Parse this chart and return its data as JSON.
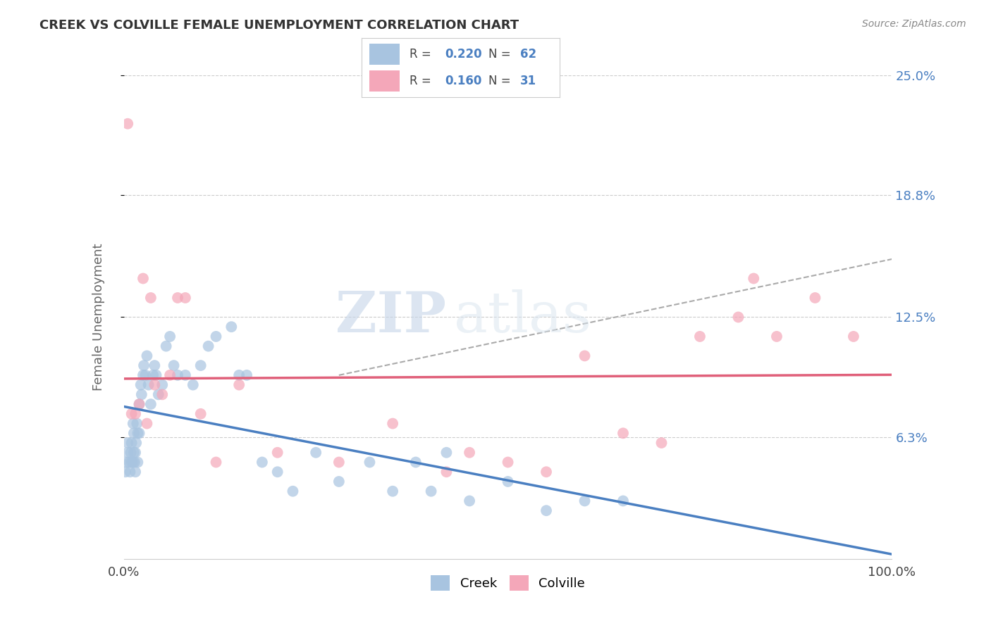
{
  "title": "CREEK VS COLVILLE FEMALE UNEMPLOYMENT CORRELATION CHART",
  "source": "Source: ZipAtlas.com",
  "ylabel": "Female Unemployment",
  "xlim": [
    0,
    100
  ],
  "ylim": [
    0,
    25
  ],
  "ytick_labels": [
    "6.3%",
    "12.5%",
    "18.8%",
    "25.0%"
  ],
  "ytick_values": [
    6.3,
    12.5,
    18.8,
    25.0
  ],
  "xtick_labels": [
    "0.0%",
    "100.0%"
  ],
  "xtick_values": [
    0,
    100
  ],
  "creek_color": "#a8c4e0",
  "colville_color": "#f4a7b9",
  "creek_line_color": "#4a7fc1",
  "colville_line_color": "#e0607a",
  "R_creek": 0.22,
  "N_creek": 62,
  "R_colville": 0.16,
  "N_colville": 31,
  "creek_x": [
    0.2,
    0.3,
    0.5,
    0.5,
    0.7,
    0.8,
    0.9,
    1.0,
    1.0,
    1.2,
    1.2,
    1.3,
    1.3,
    1.4,
    1.5,
    1.5,
    1.6,
    1.7,
    1.8,
    1.8,
    2.0,
    2.0,
    2.2,
    2.3,
    2.5,
    2.6,
    2.8,
    3.0,
    3.2,
    3.5,
    3.8,
    4.0,
    4.2,
    4.5,
    5.0,
    5.5,
    6.0,
    6.5,
    7.0,
    8.0,
    9.0,
    10.0,
    11.0,
    12.0,
    14.0,
    15.0,
    16.0,
    18.0,
    20.0,
    22.0,
    25.0,
    28.0,
    32.0,
    35.0,
    38.0,
    40.0,
    42.0,
    45.0,
    50.0,
    55.0,
    60.0,
    65.0
  ],
  "creek_y": [
    4.5,
    5.0,
    6.0,
    5.5,
    5.0,
    4.5,
    5.5,
    6.0,
    5.0,
    7.0,
    5.0,
    6.5,
    5.5,
    5.0,
    5.5,
    4.5,
    6.0,
    7.0,
    6.5,
    5.0,
    8.0,
    6.5,
    9.0,
    8.5,
    9.5,
    10.0,
    9.5,
    10.5,
    9.0,
    8.0,
    9.5,
    10.0,
    9.5,
    8.5,
    9.0,
    11.0,
    11.5,
    10.0,
    9.5,
    9.5,
    9.0,
    10.0,
    11.0,
    11.5,
    12.0,
    9.5,
    9.5,
    5.0,
    4.5,
    3.5,
    5.5,
    4.0,
    5.0,
    3.5,
    5.0,
    3.5,
    5.5,
    3.0,
    4.0,
    2.5,
    3.0,
    3.0
  ],
  "colville_x": [
    0.5,
    1.0,
    1.5,
    2.0,
    2.5,
    3.0,
    3.5,
    4.0,
    5.0,
    6.0,
    7.0,
    8.0,
    10.0,
    12.0,
    15.0,
    20.0,
    28.0,
    35.0,
    42.0,
    45.0,
    50.0,
    55.0,
    60.0,
    65.0,
    70.0,
    75.0,
    80.0,
    82.0,
    85.0,
    90.0,
    95.0
  ],
  "colville_y": [
    22.5,
    7.5,
    7.5,
    8.0,
    14.5,
    7.0,
    13.5,
    9.0,
    8.5,
    9.5,
    13.5,
    13.5,
    7.5,
    5.0,
    9.0,
    5.5,
    5.0,
    7.0,
    4.5,
    5.5,
    5.0,
    4.5,
    10.5,
    6.5,
    6.0,
    11.5,
    12.5,
    14.5,
    11.5,
    13.5,
    11.5
  ],
  "watermark_zip": "ZIP",
  "watermark_atlas": "atlas",
  "background_color": "#ffffff",
  "grid_color": "#cccccc",
  "legend_border_color": "#cccccc"
}
